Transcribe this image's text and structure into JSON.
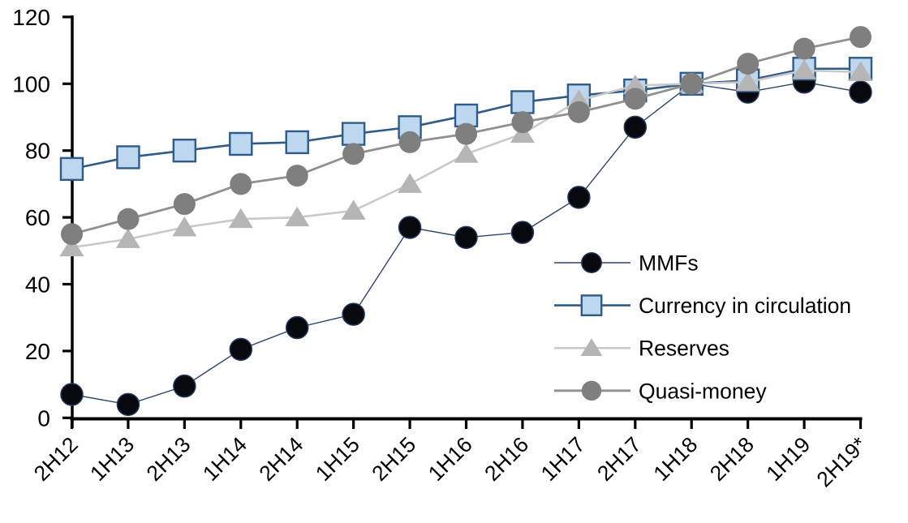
{
  "chart_data": {
    "type": "line",
    "title": "",
    "categories": [
      "2H12",
      "1H13",
      "2H13",
      "1H14",
      "2H14",
      "1H15",
      "2H15",
      "1H16",
      "2H16",
      "1H17",
      "2H17",
      "1H18",
      "2H18",
      "1H19",
      "2H19*"
    ],
    "yticks": [
      0,
      20,
      40,
      60,
      80,
      100,
      120
    ],
    "ylim": [
      0,
      120
    ],
    "grid": false,
    "legend_position": "inside-right",
    "axis_color": "#000000",
    "background_color": "#FFFFFF",
    "series": [
      {
        "name": "MMFs",
        "marker": "circle",
        "line_color": "#2E4369",
        "line_width": 1.4,
        "marker_fill": "#07090F",
        "marker_stroke": "#243A5E",
        "marker_stroke_width": 1.5,
        "values": [
          7,
          4,
          9.5,
          20.5,
          27,
          31,
          57,
          54,
          55.5,
          66,
          87,
          100,
          97.5,
          100.5,
          97.5
        ]
      },
      {
        "name": "Currency in circulation",
        "marker": "square",
        "line_color": "#2E5B8A",
        "line_width": 2.6,
        "marker_fill": "#BDD7EE",
        "marker_stroke": "#2E5B8A",
        "marker_stroke_width": 2.4,
        "values": [
          74.5,
          78,
          80,
          82,
          82.5,
          85,
          87,
          90.5,
          94.5,
          96.5,
          98,
          100,
          101,
          104.5,
          104.5
        ]
      },
      {
        "name": "Reserves",
        "marker": "triangle",
        "line_color": "#C9C9C9",
        "line_width": 2.6,
        "marker_fill": "#B5B5B5",
        "marker_stroke": "none",
        "marker_stroke_width": 0,
        "values": [
          51,
          53.5,
          57,
          59.5,
          60,
          62,
          70,
          79,
          85,
          95,
          99.5,
          100,
          100.5,
          104,
          103.5
        ]
      },
      {
        "name": "Quasi-money",
        "marker": "circle",
        "line_color": "#909090",
        "line_width": 2.8,
        "marker_fill": "#7F7F7F",
        "marker_stroke": "none",
        "marker_stroke_width": 0,
        "values": [
          55,
          59.5,
          64,
          70,
          72.5,
          79,
          82.5,
          85,
          88.5,
          91.5,
          95.5,
          100,
          106,
          110.5,
          114
        ]
      }
    ]
  }
}
